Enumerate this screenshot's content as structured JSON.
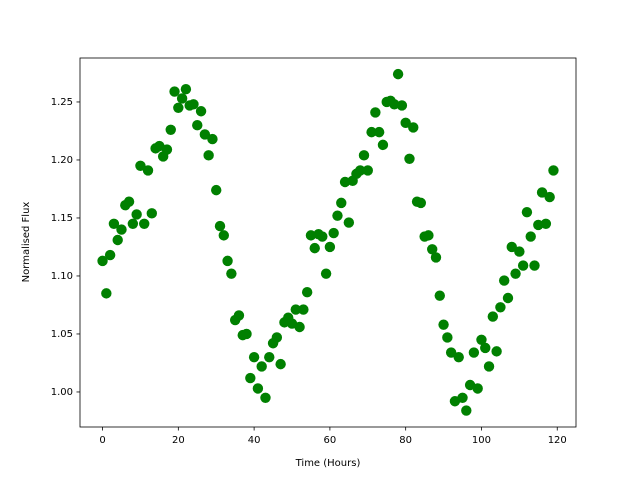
{
  "chart_data": {
    "type": "scatter",
    "xlabel": "Time (Hours)",
    "ylabel": "Normalised Flux",
    "xlim": [
      -5.95,
      124.95
    ],
    "ylim": [
      0.9698,
      1.2879
    ],
    "xticks": [
      0,
      20,
      40,
      60,
      80,
      100,
      120
    ],
    "yticks": [
      {
        "value": 1.0,
        "label": "1.00"
      },
      1.05,
      {
        "value": 1.1,
        "label": "1.10"
      },
      1.15,
      {
        "value": 1.2,
        "label": "1.20"
      },
      1.25
    ],
    "grid": false,
    "series": [
      {
        "color": "#008000",
        "x": [
          0,
          1,
          2,
          3,
          4,
          5,
          6,
          7,
          8,
          9,
          10,
          11,
          12,
          13,
          14,
          15,
          16,
          17,
          18,
          19,
          20,
          21,
          22,
          23,
          24,
          25,
          26,
          27,
          28,
          29,
          30,
          31,
          32,
          33,
          34,
          35,
          36,
          37,
          38,
          39,
          40,
          41,
          42,
          43,
          44,
          45,
          46,
          47,
          48,
          49,
          50,
          51,
          52,
          53,
          54,
          55,
          56,
          57,
          58,
          59,
          60,
          61,
          62,
          63,
          64,
          65,
          66,
          67,
          68,
          69,
          70,
          71,
          72,
          73,
          74,
          75,
          76,
          77,
          78,
          79,
          80,
          81,
          82,
          83,
          84,
          85,
          86,
          87,
          88,
          89,
          90,
          91,
          92,
          93,
          94,
          95,
          96,
          97,
          98,
          99,
          100,
          101,
          102,
          103,
          104,
          105,
          106,
          107,
          108,
          109,
          110,
          111,
          112,
          113,
          114,
          115,
          116,
          117,
          118,
          119
        ],
        "values": [
          1.113,
          1.085,
          1.118,
          1.145,
          1.131,
          1.14,
          1.161,
          1.164,
          1.145,
          1.153,
          1.195,
          1.145,
          1.191,
          1.154,
          1.21,
          1.212,
          1.203,
          1.209,
          1.226,
          1.259,
          1.245,
          1.253,
          1.261,
          1.247,
          1.248,
          1.23,
          1.242,
          1.222,
          1.204,
          1.218,
          1.174,
          1.143,
          1.135,
          1.113,
          1.102,
          1.062,
          1.066,
          1.049,
          1.05,
          1.012,
          1.03,
          1.003,
          1.022,
          0.995,
          1.03,
          1.042,
          1.047,
          1.024,
          1.06,
          1.064,
          1.059,
          1.071,
          1.056,
          1.071,
          1.086,
          1.135,
          1.124,
          1.136,
          1.134,
          1.102,
          1.125,
          1.137,
          1.152,
          1.163,
          1.181,
          1.146,
          1.182,
          1.188,
          1.191,
          1.204,
          1.191,
          1.224,
          1.241,
          1.224,
          1.213,
          1.25,
          1.251,
          1.248,
          1.274,
          1.247,
          1.232,
          1.201,
          1.228,
          1.164,
          1.163,
          1.134,
          1.135,
          1.123,
          1.116,
          1.083,
          1.058,
          1.047,
          1.034,
          0.992,
          1.03,
          0.995,
          0.984,
          1.006,
          1.034,
          1.003,
          1.045,
          1.038,
          1.022,
          1.065,
          1.035,
          1.073,
          1.096,
          1.081,
          1.125,
          1.102,
          1.121,
          1.109,
          1.155,
          1.134,
          1.109,
          1.144,
          1.172,
          1.145,
          1.168,
          1.191
        ]
      }
    ]
  }
}
